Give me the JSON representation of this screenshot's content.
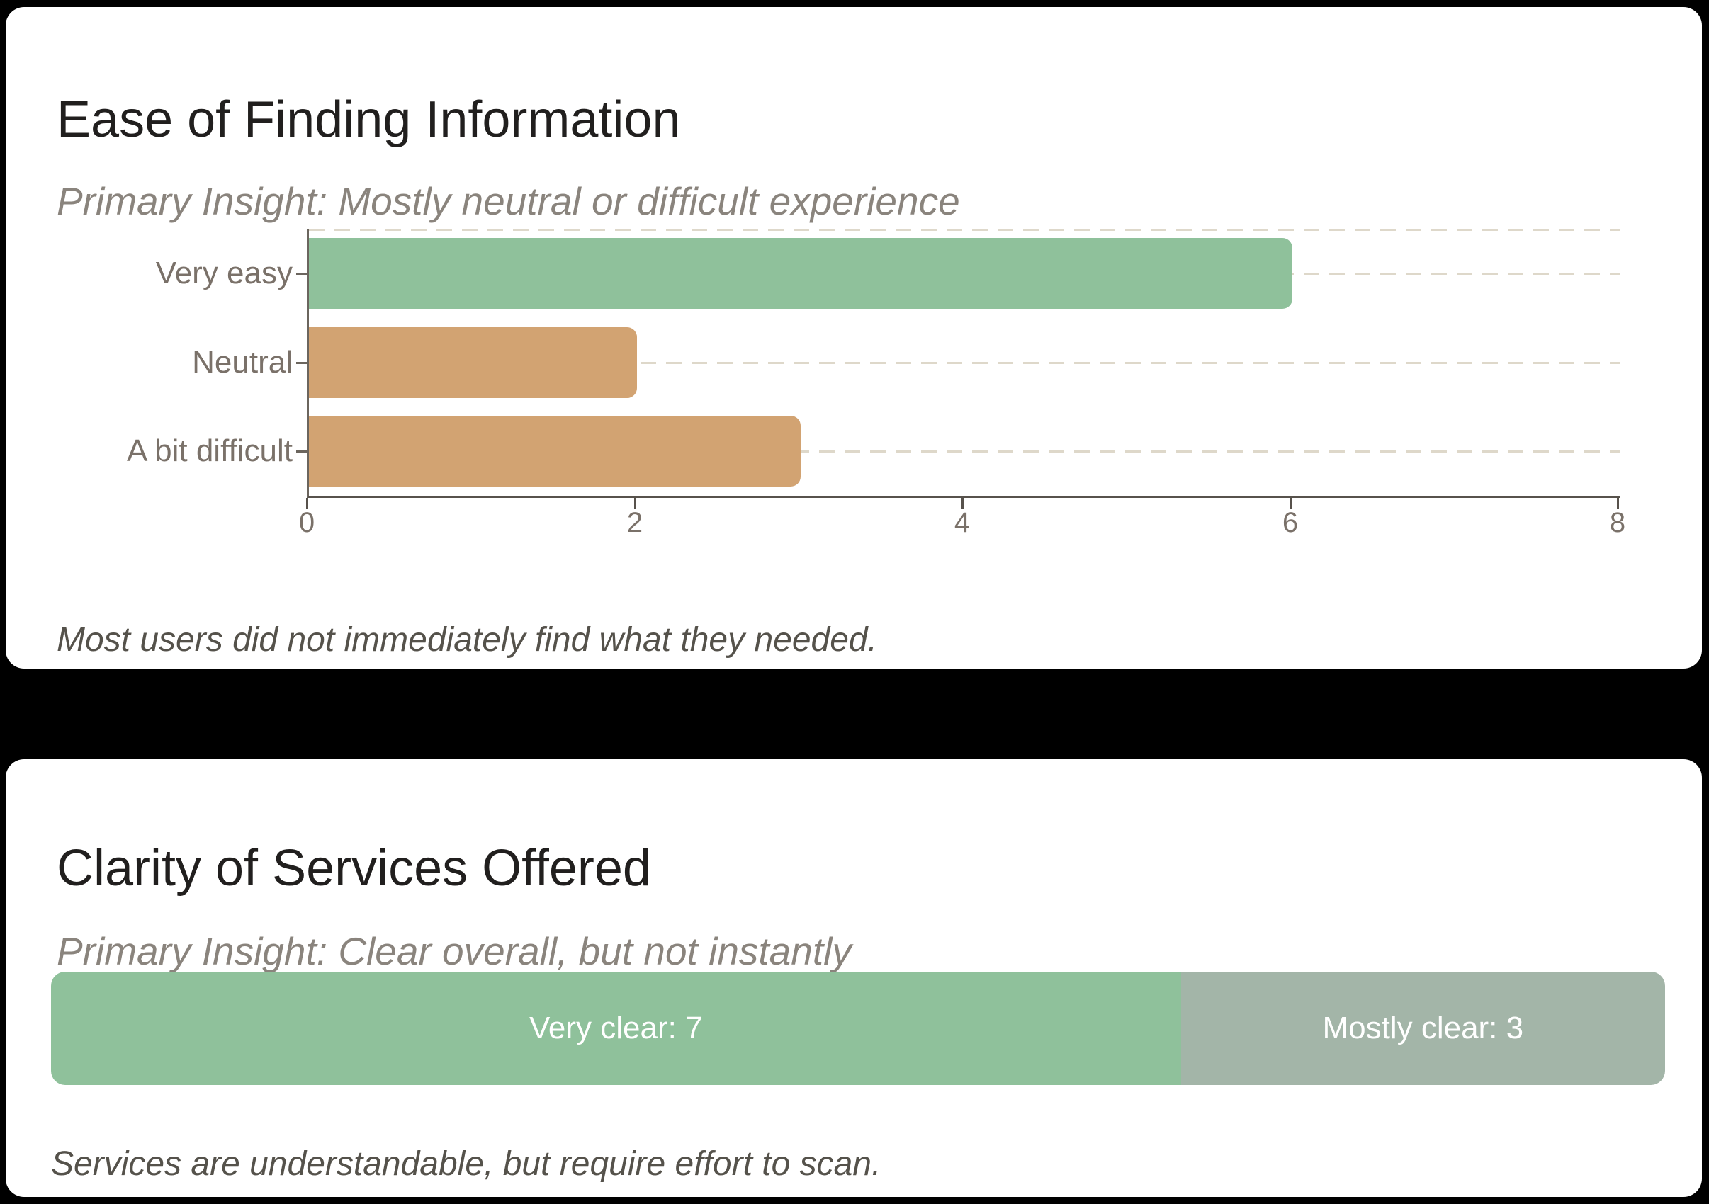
{
  "page": {
    "background": "#000000",
    "card_background": "#ffffff"
  },
  "cards": [
    {
      "title": "Ease of Finding Information",
      "subtitle": "Primary Insight: Mostly neutral or difficult experience",
      "footer": "Most users did not immediately find what they needed."
    },
    {
      "title": "Clarity of Services Offered",
      "subtitle": "Primary Insight: Clear overall, but not instantly",
      "footer": "Services are understandable, but require effort to scan."
    }
  ],
  "chart_data": [
    {
      "type": "bar",
      "orientation": "horizontal",
      "title": "Ease of Finding Information",
      "subtitle": "Primary Insight: Mostly neutral or difficult experience",
      "categories": [
        "Very easy",
        "Neutral",
        "A bit difficult"
      ],
      "values": [
        6,
        2,
        3
      ],
      "bar_colors": [
        "#8fc19b",
        "#d2a372",
        "#d2a372"
      ],
      "xlim": [
        0,
        8
      ],
      "xticks": [
        0,
        2,
        4,
        6,
        8
      ],
      "grid": "dashed-horizontal",
      "grid_color": "#ded8ca",
      "axis_color": "#57524c",
      "label_color": "#7a7169",
      "annotation": "Most users did not immediately find what they needed."
    },
    {
      "type": "bar",
      "subtype": "stacked-single-row",
      "title": "Clarity of Services Offered",
      "subtitle": "Primary Insight: Clear overall, but not instantly",
      "total": 10,
      "series": [
        {
          "name": "Very clear",
          "value": 7,
          "label": "Very clear: 7",
          "color": "#8fc19b",
          "text_color": "#ffffff"
        },
        {
          "name": "Mostly clear",
          "value": 3,
          "label": "Mostly clear: 3",
          "color": "#a3b5a8",
          "text_color": "#ffffff"
        }
      ],
      "annotation": "Services are understandable, but require effort to scan."
    }
  ]
}
